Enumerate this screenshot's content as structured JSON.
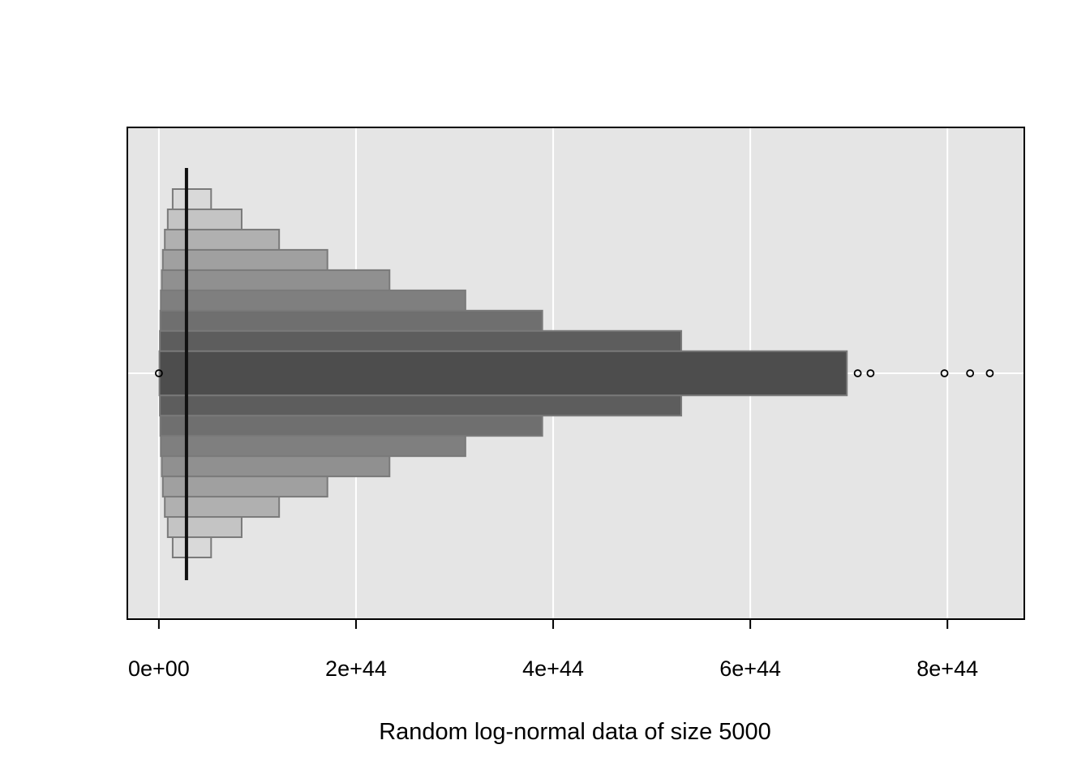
{
  "chart_data": {
    "type": "letter-value-plot",
    "orientation": "horizontal",
    "title": "",
    "xlabel": "Random log-normal data of size 5000",
    "ylabel": "",
    "xlim": [
      -3.2e+43,
      8.78e+44
    ],
    "grid": true,
    "legend": "none",
    "x_ticks": [
      {
        "value": 0,
        "label": "0e+00"
      },
      {
        "value": 2e+44,
        "label": "2e+44"
      },
      {
        "value": 4e+44,
        "label": "4e+44"
      },
      {
        "value": 6e+44,
        "label": "6e+44"
      },
      {
        "value": 8e+44,
        "label": "8e+44"
      }
    ],
    "median": 2.8e+43,
    "boxes": [
      {
        "lower": 1.4e+43,
        "upper": 5.3e+43,
        "height": 1.0,
        "color": "#d9d9d9"
      },
      {
        "lower": 9e+42,
        "upper": 8.4e+43,
        "height": 0.89,
        "color": "#c4c4c4"
      },
      {
        "lower": 6e+42,
        "upper": 1.22e+44,
        "height": 0.78,
        "color": "#b0b0b0"
      },
      {
        "lower": 4e+42,
        "upper": 1.71e+44,
        "height": 0.67,
        "color": "#a0a0a0"
      },
      {
        "lower": 3e+42,
        "upper": 2.34e+44,
        "height": 0.56,
        "color": "#909090"
      },
      {
        "lower": 2e+42,
        "upper": 3.11e+44,
        "height": 0.45,
        "color": "#7f7f7f"
      },
      {
        "lower": 1.5e+42,
        "upper": 3.89e+44,
        "height": 0.34,
        "color": "#6f6f6f"
      },
      {
        "lower": 1e+42,
        "upper": 5.3e+44,
        "height": 0.23,
        "color": "#5d5d5d"
      },
      {
        "lower": 5e+41,
        "upper": 6.98e+44,
        "height": 0.12,
        "color": "#4d4d4d"
      }
    ],
    "outliers": [
      1e+40,
      7.09e+44,
      7.22e+44,
      7.97e+44,
      8.23e+44,
      8.43e+44
    ],
    "colors": {
      "panel_background": "#e5e5e5",
      "grid": "#ffffff",
      "box_border": "#7a7a7a",
      "median_line": "#111111"
    }
  }
}
